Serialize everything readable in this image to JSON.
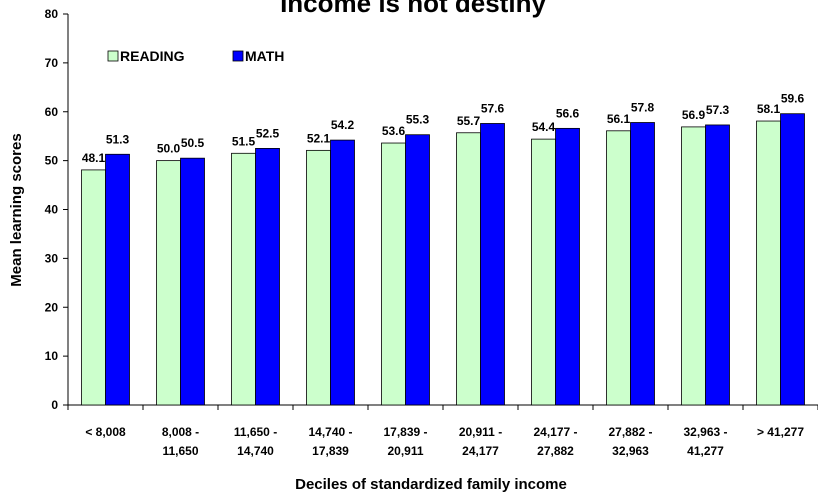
{
  "chart_data": {
    "type": "bar",
    "title": "Income is not destiny",
    "xlabel": "Deciles of standardized family income",
    "ylabel": "Mean learning scores",
    "ylim": [
      0,
      80
    ],
    "yticks": [
      "0",
      "10",
      "20",
      "30",
      "40",
      "50",
      "60",
      "70",
      "80"
    ],
    "categories": [
      [
        "< 8,008",
        ""
      ],
      [
        "8,008 -",
        "11,650"
      ],
      [
        "11,650 -",
        "14,740"
      ],
      [
        "14,740 -",
        "17,839"
      ],
      [
        "17,839 -",
        "20,911"
      ],
      [
        "20,911 -",
        "24,177"
      ],
      [
        "24,177 -",
        "27,882"
      ],
      [
        "27,882 -",
        "32,963"
      ],
      [
        "32,963 -",
        "41,277"
      ],
      [
        "> 41,277",
        ""
      ]
    ],
    "series": [
      {
        "name": "READING",
        "color": "#ccffcc",
        "values": [
          48.1,
          50.0,
          51.5,
          52.1,
          53.6,
          55.7,
          54.4,
          56.1,
          56.9,
          58.1
        ],
        "labels": [
          "48.1",
          "50.0",
          "51.5",
          "52.1",
          "53.6",
          "55.7",
          "54.4",
          "56.1",
          "56.9",
          "58.1"
        ]
      },
      {
        "name": "MATH",
        "color": "#0000ff",
        "values": [
          51.3,
          50.5,
          52.5,
          54.2,
          55.3,
          57.6,
          56.6,
          57.8,
          57.3,
          59.6
        ],
        "labels": [
          "51.3",
          "50.5",
          "52.5",
          "54.2",
          "55.3",
          "57.6",
          "56.6",
          "57.8",
          "57.3",
          "59.6"
        ]
      }
    ],
    "legend_position": "top-left",
    "grid": false
  }
}
